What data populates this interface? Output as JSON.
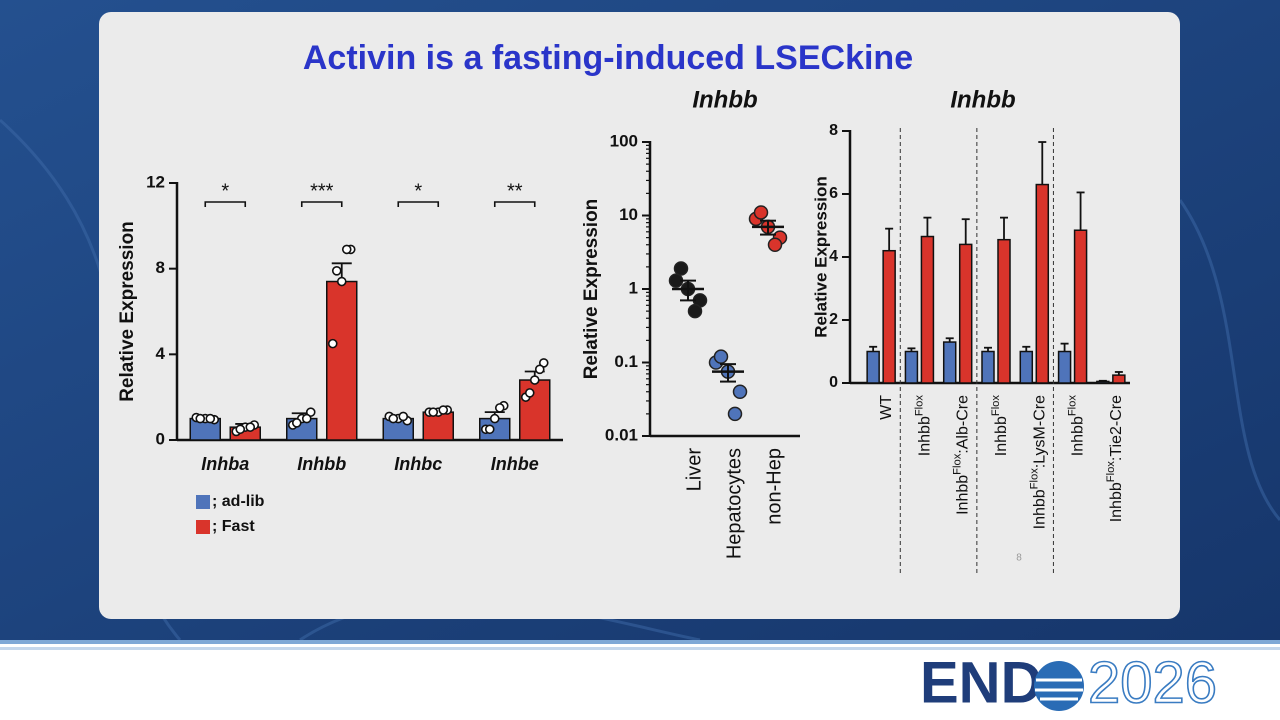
{
  "slide": {
    "title": "Activin is a fasting-induced LSECkine",
    "page_number": "8",
    "logo": {
      "left": "END",
      "right": "2026"
    }
  },
  "chart_data": [
    {
      "type": "bar",
      "y_label": "Relative Expression",
      "categories": [
        "Inhba",
        "Inhbb",
        "Inhbc",
        "Inhbe"
      ],
      "series": [
        {
          "name": "; ad-lib",
          "color": "#4f74ba",
          "values": [
            1.0,
            1.0,
            1.0,
            1.0
          ],
          "errors": [
            0.1,
            0.25,
            0.1,
            0.3
          ],
          "points": [
            [
              1.0,
              1.05,
              0.95,
              1.0,
              1.0
            ],
            [
              1.0,
              0.7,
              1.3,
              0.8,
              1.0
            ],
            [
              1.0,
              1.1,
              0.9,
              1.0,
              1.1
            ],
            [
              1.0,
              0.5,
              1.6,
              0.5,
              1.5
            ]
          ]
        },
        {
          "name": "; Fast",
          "color": "#d9342b",
          "values": [
            0.6,
            7.4,
            1.3,
            2.8
          ],
          "errors": [
            0.15,
            0.85,
            0.05,
            0.4
          ],
          "points": [
            [
              0.6,
              0.4,
              0.7,
              0.5,
              0.6
            ],
            [
              7.4,
              4.5,
              8.9,
              7.9,
              8.9
            ],
            [
              1.3,
              1.3,
              1.4,
              1.3,
              1.4
            ],
            [
              2.8,
              2.0,
              3.6,
              2.2,
              3.3
            ]
          ]
        }
      ],
      "annotations": [
        "*",
        "***",
        "*",
        "**"
      ],
      "ylim": [
        0,
        12
      ],
      "yticks": [
        0,
        4,
        8,
        12
      ]
    },
    {
      "type": "dot",
      "title": "Inhbb",
      "y_label": "Relative Expression",
      "categories": [
        "Liver",
        "Hepatocytes",
        "non-Hep"
      ],
      "colors": [
        "#1a1a1a",
        "#4f74ba",
        "#d9342b"
      ],
      "points": [
        [
          1.0,
          1.3,
          0.7,
          1.9,
          0.5
        ],
        [
          0.075,
          0.1,
          0.04,
          0.12,
          0.02
        ],
        [
          7.0,
          9.0,
          5.0,
          11.0,
          4.0
        ]
      ],
      "means": [
        1.0,
        0.075,
        7.0
      ],
      "errors": [
        0.3,
        0.02,
        1.5
      ],
      "log_scale": true,
      "ylim": [
        0.01,
        100
      ],
      "yticks": [
        0.01,
        0.1,
        1,
        10,
        100
      ]
    },
    {
      "type": "bar",
      "title": "Inhbb",
      "y_label": "Relative Expression",
      "categories": [
        [
          "WT"
        ],
        [
          "Inhbb",
          "Flox"
        ],
        [
          "Inhbb",
          "Flox",
          ":Alb-Cre"
        ],
        [
          "Inhbb",
          "Flox"
        ],
        [
          "Inhbb",
          "Flox",
          ":LysM-Cre"
        ],
        [
          "Inhbb",
          "Flox"
        ],
        [
          "Inhbb",
          "Flox",
          ":Tie2-Cre"
        ]
      ],
      "series": [
        {
          "color": "#4f74ba",
          "values": [
            1.0,
            1.0,
            1.3,
            1.0,
            1.0,
            1.0,
            0.05
          ],
          "errors": [
            0.15,
            0.1,
            0.12,
            0.12,
            0.15,
            0.25,
            0.02
          ]
        },
        {
          "color": "#d9342b",
          "values": [
            4.2,
            4.65,
            4.4,
            4.55,
            6.3,
            4.85,
            0.25
          ],
          "errors": [
            0.7,
            0.6,
            0.8,
            0.7,
            1.35,
            1.2,
            0.1
          ]
        }
      ],
      "separators": [
        1,
        3,
        5
      ],
      "ylim": [
        0,
        8
      ],
      "yticks": [
        0,
        2,
        4,
        6,
        8
      ]
    }
  ]
}
